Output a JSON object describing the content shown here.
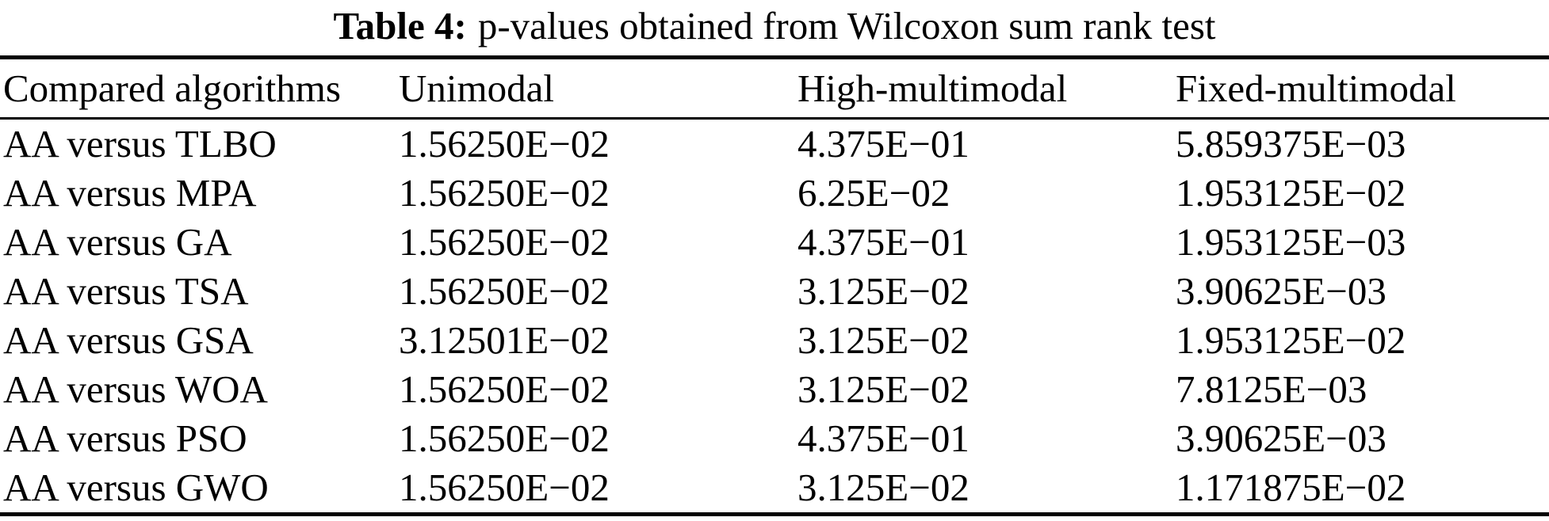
{
  "title": {
    "label": "Table 4:",
    "text": "p-values obtained from Wilcoxon sum rank test"
  },
  "colors": {
    "background": "#ffffff",
    "text": "#000000",
    "rule": "#000000"
  },
  "table": {
    "headers": [
      "Compared algorithms",
      "Unimodal",
      "High-multimodal",
      "Fixed-multimodal"
    ],
    "rows": [
      {
        "algorithm": "AA versus TLBO",
        "unimodal": "1.56250E−02",
        "high_multimodal": "4.375E−01",
        "fixed_multimodal": "5.859375E−03"
      },
      {
        "algorithm": "AA versus MPA",
        "unimodal": "1.56250E−02",
        "high_multimodal": "6.25E−02",
        "fixed_multimodal": "1.953125E−02"
      },
      {
        "algorithm": "AA versus GA",
        "unimodal": "1.56250E−02",
        "high_multimodal": "4.375E−01",
        "fixed_multimodal": "1.953125E−03"
      },
      {
        "algorithm": "AA versus TSA",
        "unimodal": "1.56250E−02",
        "high_multimodal": "3.125E−02",
        "fixed_multimodal": "3.90625E−03"
      },
      {
        "algorithm": "AA versus GSA",
        "unimodal": "3.12501E−02",
        "high_multimodal": "3.125E−02",
        "fixed_multimodal": "1.953125E−02"
      },
      {
        "algorithm": "AA versus WOA",
        "unimodal": "1.56250E−02",
        "high_multimodal": "3.125E−02",
        "fixed_multimodal": "7.8125E−03"
      },
      {
        "algorithm": "AA versus PSO",
        "unimodal": "1.56250E−02",
        "high_multimodal": "4.375E−01",
        "fixed_multimodal": "3.90625E−03"
      },
      {
        "algorithm": "AA versus GWO",
        "unimodal": "1.56250E−02",
        "high_multimodal": "3.125E−02",
        "fixed_multimodal": "1.171875E−02"
      }
    ]
  }
}
